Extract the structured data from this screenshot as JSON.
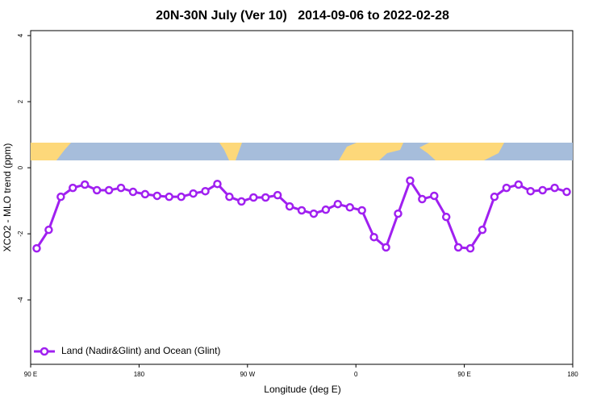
{
  "chart_data": {
    "type": "line",
    "title": "20N-30N July (Ver 10)   2014-09-06 to 2022-02-28",
    "x_label": "Longitude (deg E)",
    "y_label": "XCO2 - MLO trend (ppm)",
    "xlim": [
      90,
      540
    ],
    "ylim": [
      -5.95,
      4.15
    ],
    "xticks": [
      {
        "value": 90,
        "label": "90 E"
      },
      {
        "value": 180,
        "label": "180"
      },
      {
        "value": 270,
        "label": "90 W"
      },
      {
        "value": 360,
        "label": "0"
      },
      {
        "value": 450,
        "label": "90 E"
      },
      {
        "value": 540,
        "label": "180"
      }
    ],
    "yticks": [
      -4,
      -2,
      0,
      2,
      4
    ],
    "legend": "bottom-left",
    "x": [
      95,
      105,
      115,
      125,
      135,
      145,
      155,
      165,
      175,
      185,
      195,
      205,
      215,
      225,
      235,
      245,
      255,
      265,
      275,
      285,
      295,
      305,
      315,
      325,
      335,
      345,
      355,
      365,
      375,
      385,
      395,
      405,
      415,
      425,
      435,
      445,
      455,
      465,
      475,
      485,
      495,
      505,
      515,
      525,
      535
    ],
    "series": [
      {
        "name": "Land (Nadir&Glint) and Ocean (Glint)",
        "color": "#a020f0",
        "values": [
          -2.44,
          -1.88,
          -0.88,
          -0.61,
          -0.51,
          -0.68,
          -0.68,
          -0.61,
          -0.73,
          -0.8,
          -0.85,
          -0.88,
          -0.88,
          -0.78,
          -0.71,
          -0.49,
          -0.88,
          -1.02,
          -0.9,
          -0.9,
          -0.83,
          -1.17,
          -1.29,
          -1.39,
          -1.27,
          -1.1,
          -1.2,
          -1.29,
          -2.1,
          -2.41,
          -1.39,
          -0.39,
          -0.95,
          -0.85,
          -1.49,
          -2.41,
          -2.44,
          -1.88,
          -0.88,
          -0.61,
          -0.51,
          -0.71,
          -0.68,
          -0.61,
          -0.73
        ]
      }
    ]
  }
}
